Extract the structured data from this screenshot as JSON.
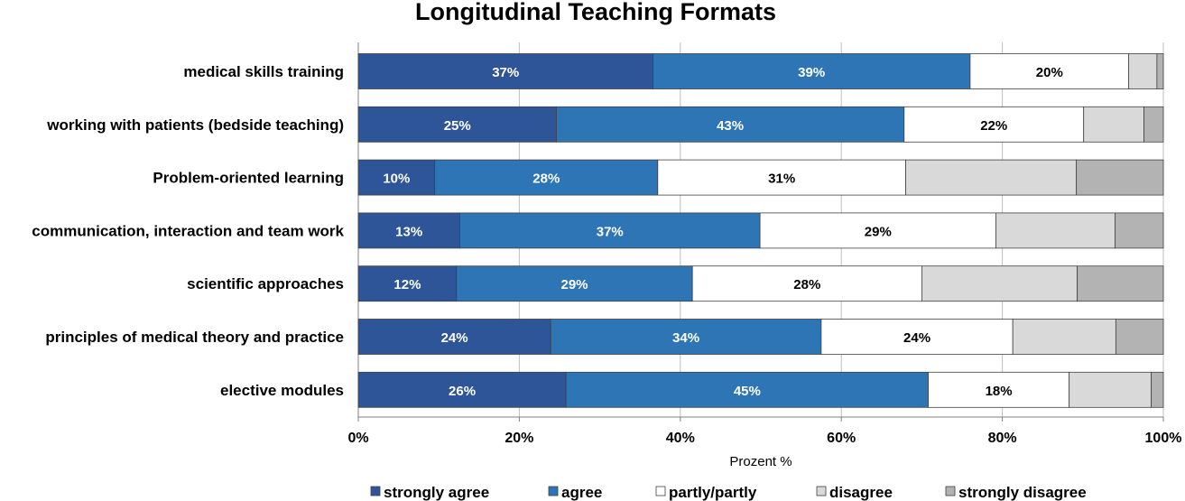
{
  "chart_data": {
    "type": "bar",
    "orientation": "horizontal",
    "stacked": "percent",
    "title": "Longitudinal Teaching Formats",
    "xlabel": "Prozent %",
    "ylabel": "",
    "xlim": [
      0,
      100
    ],
    "x_ticks": [
      "0%",
      "20%",
      "40%",
      "60%",
      "80%",
      "100%"
    ],
    "grid": true,
    "legend_position": "bottom",
    "categories": [
      "medical skills training",
      "working with patients (bedside teaching)",
      "Problem-oriented learning",
      "communication, interaction and team work",
      "scientific approaches",
      "principles of medical theory and practice",
      "elective modules"
    ],
    "series": [
      {
        "name": "strongly agree",
        "color": "#2E5597",
        "label_color": "#ffffff",
        "values": [
          36.6,
          24.6,
          9.5,
          12.6,
          12.2,
          23.9,
          25.8
        ],
        "labels": [
          "37%",
          "25%",
          "10%",
          "13%",
          "12%",
          "24%",
          "26%"
        ]
      },
      {
        "name": "agree",
        "color": "#2E75B6",
        "label_color": "#ffffff",
        "values": [
          39.4,
          43.2,
          27.7,
          37.3,
          29.3,
          33.6,
          45.0
        ],
        "labels": [
          "39%",
          "43%",
          "28%",
          "37%",
          "29%",
          "34%",
          "45%"
        ]
      },
      {
        "name": "partly/partly",
        "color": "#FFFFFF",
        "label_color": "#000000",
        "values": [
          19.7,
          22.3,
          30.8,
          29.3,
          28.5,
          23.8,
          17.5
        ],
        "labels": [
          "20%",
          "22%",
          "31%",
          "29%",
          "28%",
          "24%",
          "18%"
        ]
      },
      {
        "name": "disagree",
        "color": "#D9D9D9",
        "label_color": "#000000",
        "values": [
          3.5,
          7.5,
          21.2,
          14.8,
          19.3,
          12.8,
          10.2
        ],
        "labels": [
          "",
          "",
          "",
          "",
          "",
          "",
          ""
        ]
      },
      {
        "name": "strongly disagree",
        "color": "#B3B3B3",
        "label_color": "#000000",
        "values": [
          0.8,
          2.4,
          10.8,
          6.0,
          10.7,
          5.9,
          1.5
        ],
        "labels": [
          "",
          "",
          "",
          "",
          "",
          "",
          ""
        ]
      }
    ]
  }
}
